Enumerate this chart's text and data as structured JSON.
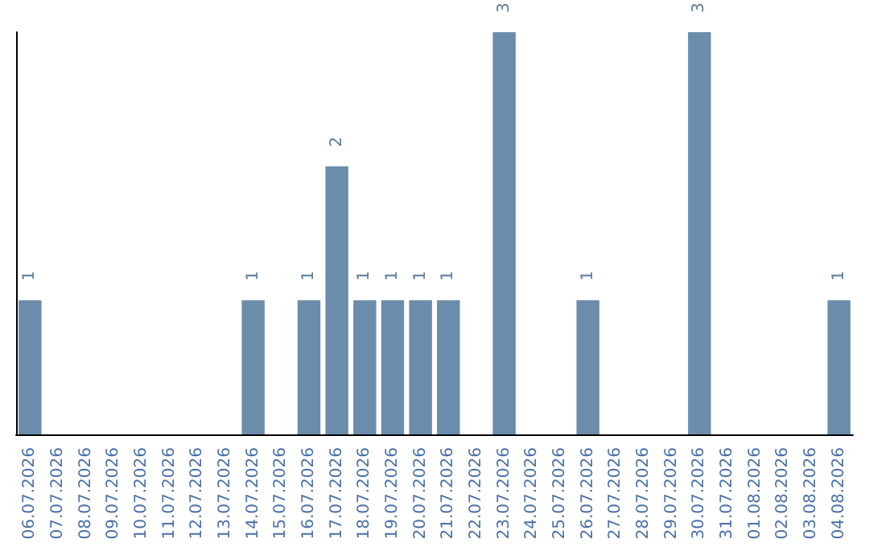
{
  "chart_data": {
    "type": "bar",
    "categories": [
      "06.07.2026",
      "07.07.2026",
      "08.07.2026",
      "09.07.2026",
      "10.07.2026",
      "11.07.2026",
      "12.07.2026",
      "13.07.2026",
      "14.07.2026",
      "15.07.2026",
      "16.07.2026",
      "17.07.2026",
      "18.07.2026",
      "19.07.2026",
      "20.07.2026",
      "21.07.2026",
      "22.07.2026",
      "23.07.2026",
      "24.07.2026",
      "25.07.2026",
      "26.07.2026",
      "27.07.2026",
      "28.07.2026",
      "29.07.2026",
      "30.07.2026",
      "31.07.2026",
      "01.08.2026",
      "02.08.2026",
      "03.08.2026",
      "04.08.2026"
    ],
    "values": [
      1,
      0,
      0,
      0,
      0,
      0,
      0,
      0,
      1,
      0,
      1,
      2,
      1,
      1,
      1,
      1,
      0,
      3,
      0,
      0,
      1,
      0,
      0,
      0,
      3,
      0,
      0,
      0,
      0,
      1
    ],
    "value_labels": [
      "1",
      null,
      null,
      null,
      null,
      null,
      null,
      null,
      "1",
      null,
      "1",
      "2",
      "1",
      "1",
      "1",
      "1",
      null,
      "3",
      null,
      null,
      "1",
      null,
      null,
      null,
      "3",
      null,
      null,
      null,
      null,
      "1"
    ],
    "color": "#6b8caa",
    "tick_labels": "x"
  }
}
